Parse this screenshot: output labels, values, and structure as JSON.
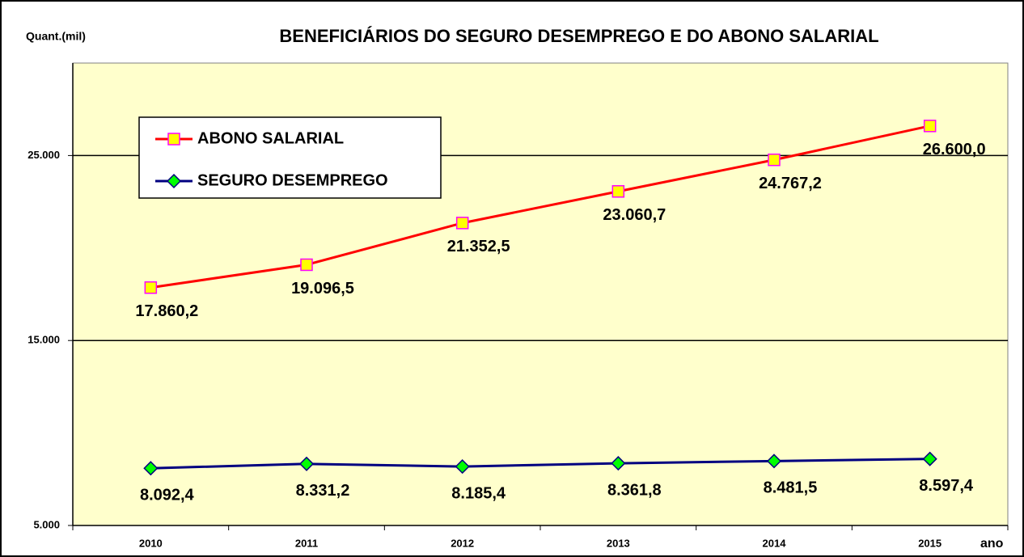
{
  "chart_data": {
    "type": "line",
    "title": "BENEFICIÁRIOS DO SEGURO DESEMPREGO E DO ABONO SALARIAL",
    "y_label": "Quant.(mil)",
    "x_label": "ano",
    "categories": [
      "2010",
      "2011",
      "2012",
      "2013",
      "2014",
      "2015"
    ],
    "series": [
      {
        "name": "ABONO SALARIAL",
        "color": "#ff0000",
        "marker": "square",
        "marker_fill": "#ffff00",
        "marker_stroke": "#ff00ff",
        "values": [
          17860.2,
          19096.5,
          21352.5,
          23060.7,
          24767.2,
          26600.0
        ],
        "value_labels": [
          "17.860,2",
          "19.096,5",
          "21.352,5",
          "23.060,7",
          "24.767,2",
          "26.600,0"
        ]
      },
      {
        "name": "SEGURO DESEMPREGO",
        "color": "#000080",
        "marker": "diamond",
        "marker_fill": "#00ff00",
        "marker_stroke": "#000080",
        "values": [
          8092.4,
          8331.2,
          8185.4,
          8361.8,
          8481.5,
          8597.4
        ],
        "value_labels": [
          "8.092,4",
          "8.331,2",
          "8.185,4",
          "8.361,8",
          "8.481,5",
          "8.597,4"
        ]
      }
    ],
    "ylim": [
      5000,
      30000
    ],
    "yticks": [
      {
        "value": 5000,
        "label": "5.000"
      },
      {
        "value": 15000,
        "label": "15.000"
      },
      {
        "value": 25000,
        "label": "25.000"
      }
    ],
    "grid": true,
    "legend": "top-left",
    "plot_background": "#ffffcc"
  }
}
